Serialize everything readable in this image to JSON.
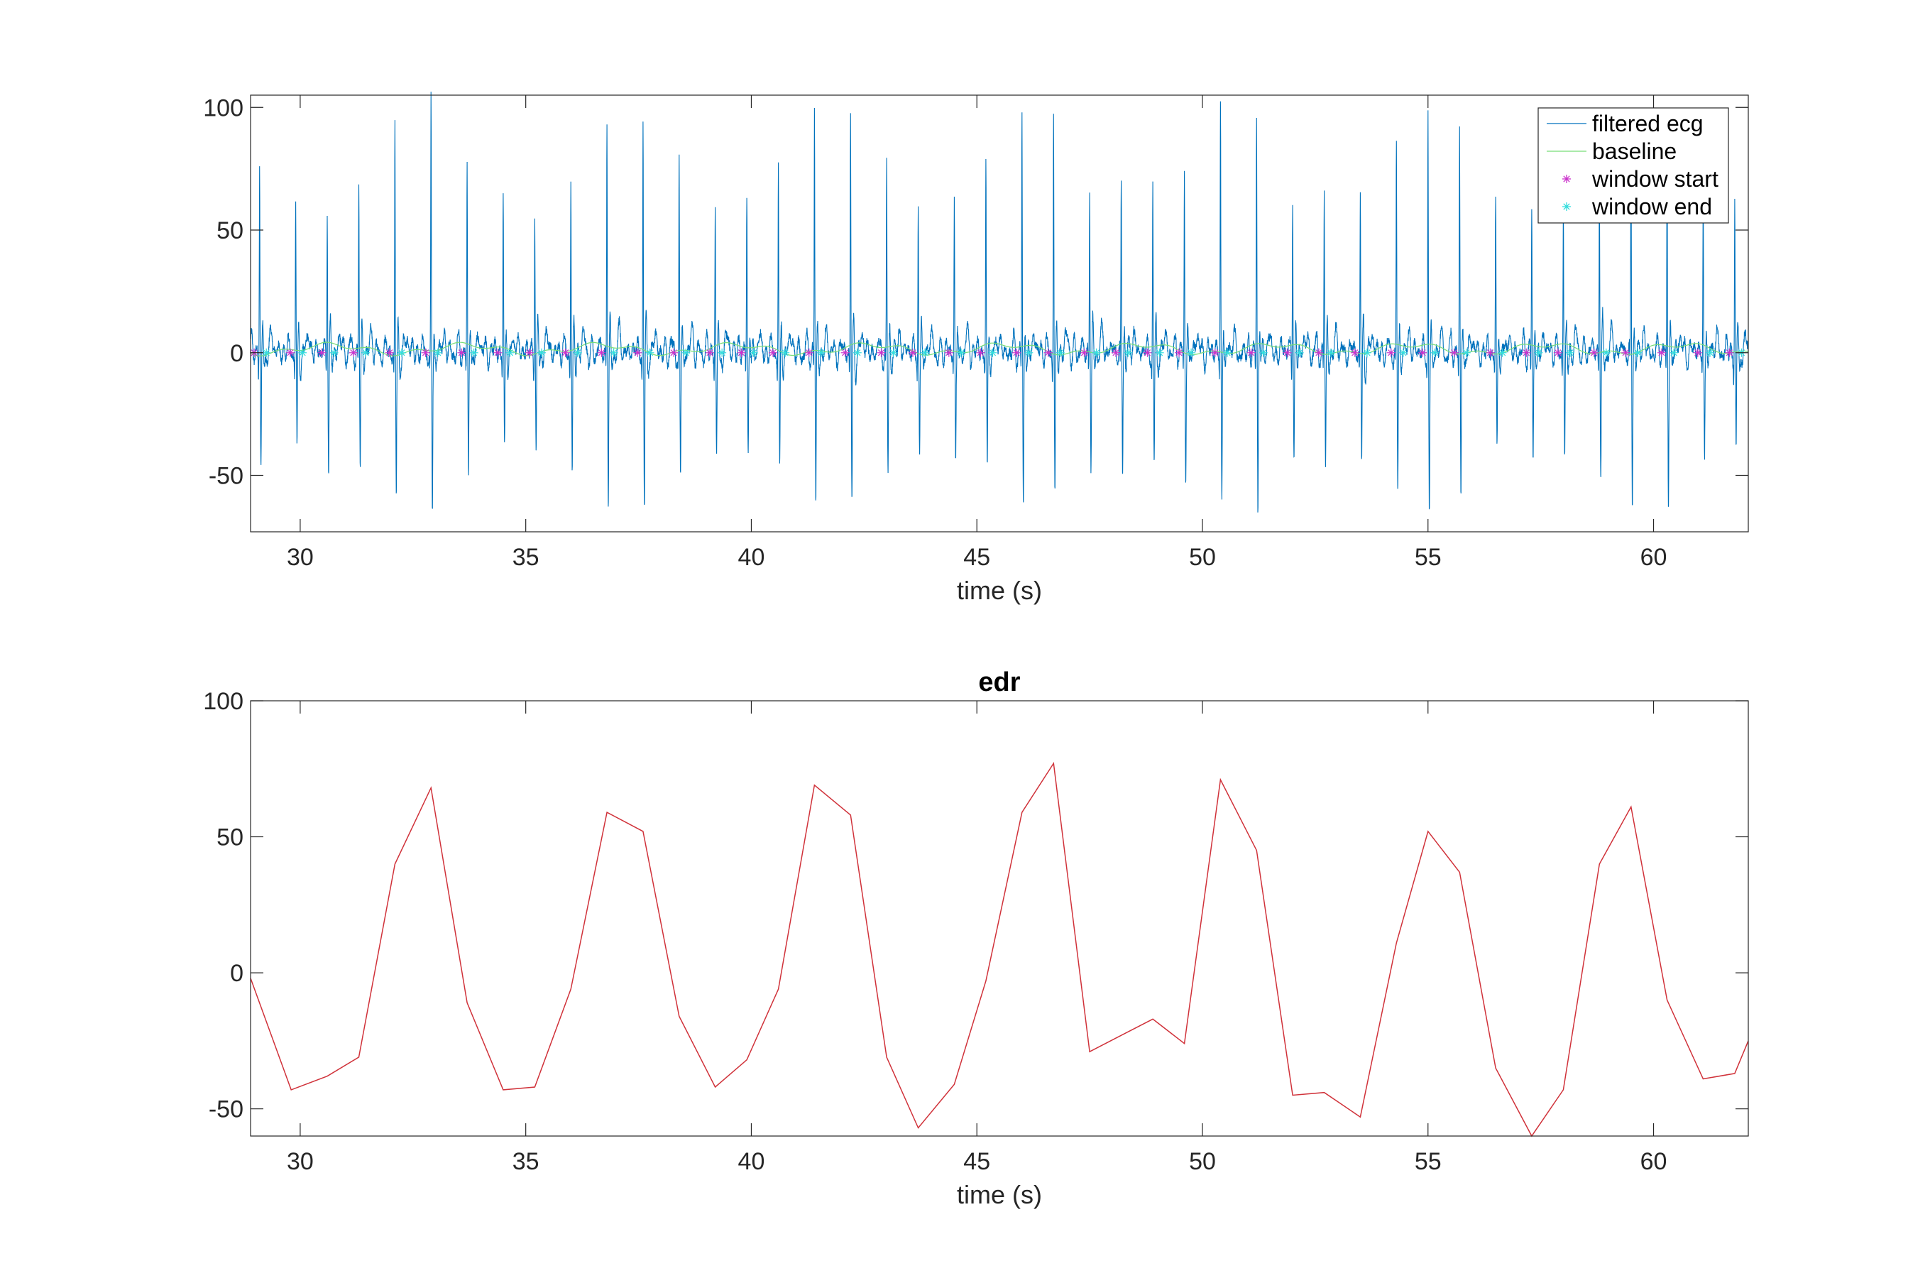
{
  "chart_data": [
    {
      "type": "line",
      "title": "",
      "xlabel": "time (s)",
      "ylabel": "",
      "xlim": [
        28.9,
        62.1
      ],
      "ylim": [
        -73,
        105
      ],
      "xticks": [
        30,
        35,
        40,
        45,
        50,
        55,
        60
      ],
      "yticks": [
        -50,
        0,
        50,
        100
      ],
      "grid": false,
      "legend_position": "top-right",
      "beat_times": [
        29.1,
        29.9,
        30.6,
        31.3,
        32.1,
        32.9,
        33.7,
        34.5,
        35.2,
        36.0,
        36.8,
        37.6,
        38.4,
        39.2,
        39.9,
        40.6,
        41.4,
        42.2,
        43.0,
        43.7,
        44.5,
        45.2,
        46.0,
        46.7,
        47.5,
        48.2,
        48.9,
        49.6,
        50.4,
        51.2,
        52.0,
        52.7,
        53.5,
        54.3,
        55.0,
        55.7,
        56.5,
        57.3,
        58.0,
        58.8,
        59.5,
        60.3,
        61.1,
        61.8
      ],
      "r_peaks": [
        77,
        61,
        62,
        66,
        92,
        100,
        75,
        62,
        62,
        73,
        96,
        96,
        75,
        59,
        63,
        76,
        99,
        98,
        74,
        59,
        61,
        75,
        98,
        101,
        68,
        69,
        68,
        72,
        102,
        96,
        65,
        66,
        66,
        81,
        97,
        89,
        60,
        59,
        61,
        75,
        92,
        87,
        60,
        62
      ],
      "s_troughs": [
        -50,
        -43,
        -48,
        -45,
        -58,
        -67,
        -50,
        -42,
        -42,
        -50,
        -60,
        -65,
        -50,
        -42,
        -41,
        -52,
        -63,
        -63,
        -49,
        -40,
        -43,
        -50,
        -63,
        -60,
        -46,
        -47,
        -46,
        -50,
        -61,
        -64,
        -45,
        -46,
        -46,
        -55,
        -65,
        -60,
        -43,
        -43,
        -44,
        -50,
        -60,
        -59,
        -43,
        -42
      ],
      "series": [
        {
          "name": "filtered ecg",
          "color": "#0072BD"
        },
        {
          "name": "baseline",
          "color": "#77DD77"
        },
        {
          "name": "window start",
          "color": "#CC33CC",
          "marker": "*"
        },
        {
          "name": "window end",
          "color": "#33DDDD",
          "marker": "*"
        }
      ]
    },
    {
      "type": "line",
      "title": "edr",
      "xlabel": "time (s)",
      "ylabel": "",
      "xlim": [
        28.9,
        62.1
      ],
      "ylim": [
        -60,
        100
      ],
      "xticks": [
        30,
        35,
        40,
        45,
        50,
        55,
        60
      ],
      "yticks": [
        -50,
        0,
        50,
        100
      ],
      "grid": false,
      "series": [
        {
          "name": "",
          "color": "#D95319",
          "x": [
            28.9,
            29.8,
            30.6,
            31.3,
            32.1,
            32.9,
            33.7,
            34.5,
            35.2,
            36.0,
            36.8,
            37.6,
            38.4,
            39.2,
            39.9,
            40.6,
            41.4,
            42.2,
            43.0,
            43.7,
            44.5,
            45.2,
            46.0,
            46.7,
            47.5,
            48.2,
            48.9,
            49.6,
            50.4,
            51.2,
            52.0,
            52.7,
            53.5,
            54.3,
            55.0,
            55.7,
            56.5,
            57.3,
            58.0,
            58.8,
            59.5,
            60.3,
            61.1,
            61.8,
            62.1
          ],
          "y": [
            -2,
            -43,
            -38,
            -31,
            40,
            68,
            -11,
            -43,
            -42,
            -6,
            59,
            52,
            -16,
            -42,
            -32,
            -6,
            69,
            58,
            -31,
            -57,
            -41,
            -3,
            59,
            77,
            -29,
            -23,
            -17,
            -26,
            71,
            45,
            -45,
            -44,
            -53,
            11,
            52,
            37,
            -35,
            -60,
            -43,
            40,
            61,
            -10,
            -39,
            -37,
            -25
          ]
        }
      ]
    }
  ]
}
